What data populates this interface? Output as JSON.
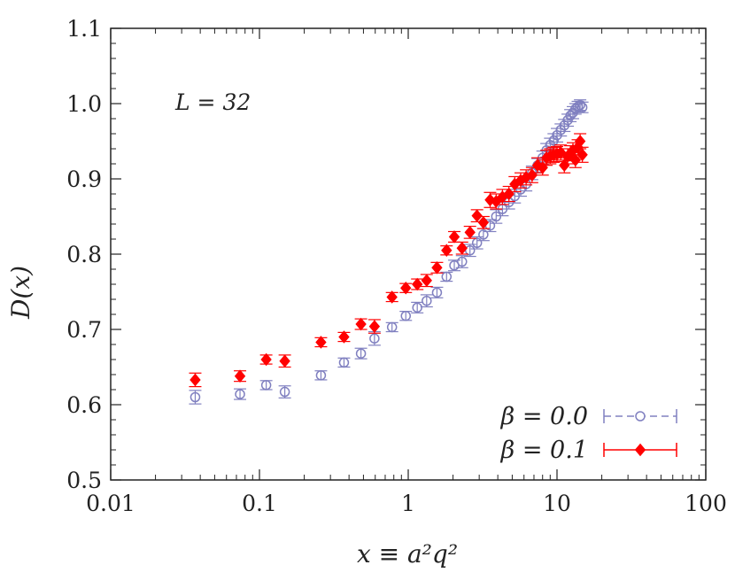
{
  "chart_data": {
    "type": "scatter",
    "title": "",
    "xlabel": "x ≡ a²q²",
    "ylabel": "D(x)",
    "xscale": "log",
    "xlim": [
      0.01,
      100
    ],
    "ylim": [
      0.5,
      1.1
    ],
    "x_ticks": [
      "0.01",
      "0.1",
      "1",
      "10",
      "100"
    ],
    "y_ticks": [
      "0.5",
      "0.6",
      "0.7",
      "0.8",
      "0.9",
      "1.0",
      "1.1"
    ],
    "grid": false,
    "legend": "bottom-right",
    "annotation": "L = 32",
    "series": [
      {
        "name": "β = 0.0",
        "marker": "open-circle",
        "line_style": "dashed",
        "color": "#8080c0",
        "points": [
          [
            0.037,
            0.61,
            0.009
          ],
          [
            0.074,
            0.614,
            0.007
          ],
          [
            0.111,
            0.626,
            0.006
          ],
          [
            0.148,
            0.617,
            0.008
          ],
          [
            0.259,
            0.639,
            0.006
          ],
          [
            0.37,
            0.656,
            0.006
          ],
          [
            0.481,
            0.668,
            0.007
          ],
          [
            0.593,
            0.688,
            0.009
          ],
          [
            0.778,
            0.703,
            0.006
          ],
          [
            0.963,
            0.718,
            0.006
          ],
          [
            1.15,
            0.729,
            0.007
          ],
          [
            1.33,
            0.738,
            0.008
          ],
          [
            1.56,
            0.749,
            0.007
          ],
          [
            1.81,
            0.77,
            0.006
          ],
          [
            2.04,
            0.785,
            0.007
          ],
          [
            2.3,
            0.79,
            0.008
          ],
          [
            2.6,
            0.805,
            0.008
          ],
          [
            2.9,
            0.815,
            0.008
          ],
          [
            3.2,
            0.826,
            0.008
          ],
          [
            3.55,
            0.838,
            0.008
          ],
          [
            3.9,
            0.85,
            0.009
          ],
          [
            4.3,
            0.86,
            0.009
          ],
          [
            4.75,
            0.869,
            0.009
          ],
          [
            5.2,
            0.877,
            0.009
          ],
          [
            5.7,
            0.886,
            0.009
          ],
          [
            6.2,
            0.893,
            0.009
          ],
          [
            6.8,
            0.908,
            0.009
          ],
          [
            7.4,
            0.918,
            0.009
          ],
          [
            8.0,
            0.928,
            0.009
          ],
          [
            8.5,
            0.938,
            0.009
          ],
          [
            9.0,
            0.945,
            0.009
          ],
          [
            9.5,
            0.951,
            0.009
          ],
          [
            10.0,
            0.958,
            0.009
          ],
          [
            10.6,
            0.965,
            0.008
          ],
          [
            11.2,
            0.971,
            0.008
          ],
          [
            11.8,
            0.978,
            0.008
          ],
          [
            12.3,
            0.984,
            0.008
          ],
          [
            12.8,
            0.988,
            0.008
          ],
          [
            13.3,
            0.993,
            0.007
          ],
          [
            13.8,
            0.996,
            0.007
          ],
          [
            14.3,
            0.998,
            0.007
          ],
          [
            14.8,
            0.995,
            0.007
          ]
        ]
      },
      {
        "name": "β = 0.1",
        "marker": "filled-diamond",
        "line_style": "solid",
        "color": "#ff0000",
        "points": [
          [
            0.037,
            0.633,
            0.009
          ],
          [
            0.074,
            0.638,
            0.007
          ],
          [
            0.111,
            0.66,
            0.006
          ],
          [
            0.148,
            0.658,
            0.008
          ],
          [
            0.259,
            0.683,
            0.006
          ],
          [
            0.37,
            0.69,
            0.006
          ],
          [
            0.481,
            0.707,
            0.007
          ],
          [
            0.593,
            0.704,
            0.009
          ],
          [
            0.778,
            0.743,
            0.006
          ],
          [
            0.963,
            0.755,
            0.006
          ],
          [
            1.15,
            0.76,
            0.007
          ],
          [
            1.33,
            0.765,
            0.008
          ],
          [
            1.56,
            0.782,
            0.007
          ],
          [
            1.81,
            0.805,
            0.006
          ],
          [
            2.04,
            0.823,
            0.007
          ],
          [
            2.3,
            0.808,
            0.008
          ],
          [
            2.6,
            0.829,
            0.008
          ],
          [
            2.9,
            0.851,
            0.008
          ],
          [
            3.2,
            0.842,
            0.008
          ],
          [
            3.55,
            0.872,
            0.01
          ],
          [
            3.9,
            0.87,
            0.01
          ],
          [
            4.3,
            0.876,
            0.01
          ],
          [
            4.75,
            0.88,
            0.01
          ],
          [
            5.2,
            0.893,
            0.01
          ],
          [
            5.7,
            0.898,
            0.01
          ],
          [
            6.2,
            0.902,
            0.01
          ],
          [
            6.8,
            0.905,
            0.01
          ],
          [
            7.4,
            0.918,
            0.01
          ],
          [
            8.0,
            0.915,
            0.01
          ],
          [
            8.5,
            0.928,
            0.01
          ],
          [
            9.0,
            0.93,
            0.01
          ],
          [
            9.5,
            0.932,
            0.01
          ],
          [
            10.0,
            0.933,
            0.01
          ],
          [
            10.6,
            0.935,
            0.01
          ],
          [
            11.2,
            0.918,
            0.01
          ],
          [
            11.8,
            0.93,
            0.01
          ],
          [
            12.3,
            0.934,
            0.01
          ],
          [
            12.8,
            0.938,
            0.01
          ],
          [
            13.3,
            0.925,
            0.01
          ],
          [
            13.8,
            0.942,
            0.01
          ],
          [
            14.3,
            0.95,
            0.01
          ],
          [
            14.8,
            0.932,
            0.01
          ]
        ]
      }
    ]
  }
}
